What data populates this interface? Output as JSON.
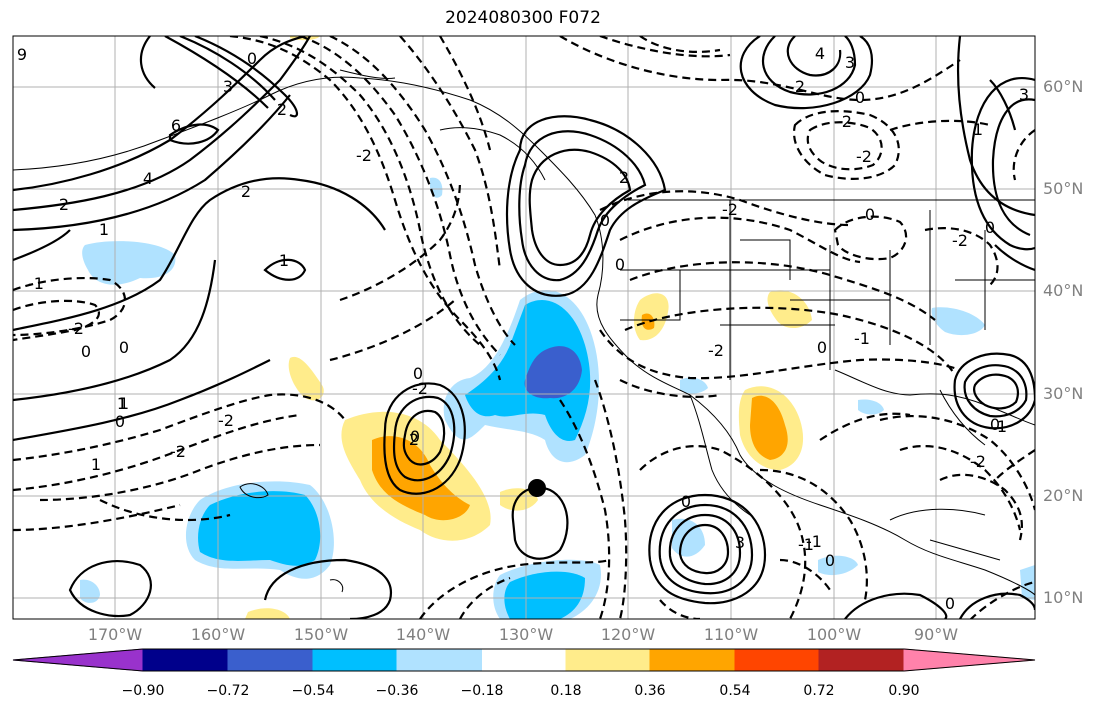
{
  "title": "2024080300 F072",
  "lat_labels": [
    "60°N",
    "50°N",
    "40°N",
    "30°N",
    "20°N",
    "10°N"
  ],
  "lon_labels": [
    "170°W",
    "160°W",
    "150°W",
    "140°W",
    "130°W",
    "120°W",
    "110°W",
    "100°W",
    "90°W"
  ],
  "colorbar": {
    "ticks": [
      "−0.90",
      "−0.72",
      "−0.54",
      "−0.36",
      "−0.18",
      "0.18",
      "0.36",
      "0.54",
      "0.72",
      "0.90"
    ],
    "colors": [
      "#9932cc",
      "#00008b",
      "#3a5fcd",
      "#00bfff",
      "#b0e2ff",
      "#ffffff",
      "#ffec8b",
      "#ffa500",
      "#ff4500",
      "#b22222",
      "#ff82ab"
    ]
  },
  "contour_labels": [
    {
      "text": "9"
    },
    {
      "text": "0"
    },
    {
      "text": "3"
    },
    {
      "text": "6"
    },
    {
      "text": "4"
    },
    {
      "text": "2"
    },
    {
      "text": "1"
    },
    {
      "text": "-1"
    },
    {
      "text": "-2"
    },
    {
      "text": "0"
    },
    {
      "text": "0"
    },
    {
      "text": "1"
    },
    {
      "text": "0"
    },
    {
      "text": "-2"
    },
    {
      "text": "-2"
    },
    {
      "text": "1"
    },
    {
      "text": "2"
    },
    {
      "text": "-2"
    },
    {
      "text": "2"
    },
    {
      "text": "1"
    },
    {
      "text": "0"
    },
    {
      "text": "-2"
    },
    {
      "text": "0"
    },
    {
      "text": "2"
    },
    {
      "text": "4"
    },
    {
      "text": "3"
    },
    {
      "text": "2"
    },
    {
      "text": "0"
    },
    {
      "text": "-2"
    },
    {
      "text": "-2"
    },
    {
      "text": "0"
    },
    {
      "text": "-1"
    },
    {
      "text": "0"
    },
    {
      "text": "0"
    },
    {
      "text": "0"
    },
    {
      "text": "2"
    },
    {
      "text": "3"
    },
    {
      "text": "0"
    },
    {
      "text": "-1"
    },
    {
      "text": "0"
    },
    {
      "text": "0"
    },
    {
      "text": "1"
    },
    {
      "text": "-2"
    },
    {
      "text": "-1"
    },
    {
      "text": "3"
    },
    {
      "text": "0"
    },
    {
      "text": "-2"
    },
    {
      "text": "-2"
    },
    {
      "text": "1"
    },
    {
      "text": "1"
    },
    {
      "text": "-2"
    },
    {
      "text": "0"
    }
  ]
}
